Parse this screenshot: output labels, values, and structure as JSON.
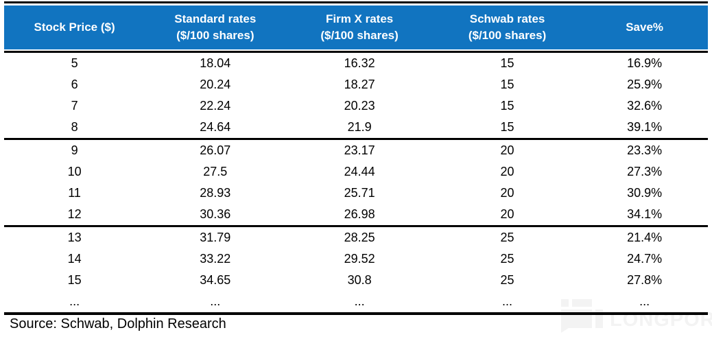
{
  "chart_data": {
    "type": "table",
    "title": "",
    "columns": [
      "Stock Price ($)",
      "Standard rates ($/100 shares)",
      "Firm X rates ($/100 shares)",
      "Schwab rates ($/100 shares)",
      "Save%"
    ],
    "rows": [
      [
        "5",
        "18.04",
        "16.32",
        "15",
        "16.9%"
      ],
      [
        "6",
        "20.24",
        "18.27",
        "15",
        "25.9%"
      ],
      [
        "7",
        "22.24",
        "20.23",
        "15",
        "32.6%"
      ],
      [
        "8",
        "24.64",
        "21.9",
        "15",
        "39.1%"
      ],
      [
        "9",
        "26.07",
        "23.17",
        "20",
        "23.3%"
      ],
      [
        "10",
        "27.5",
        "24.44",
        "20",
        "27.3%"
      ],
      [
        "11",
        "28.93",
        "25.71",
        "20",
        "30.9%"
      ],
      [
        "12",
        "30.36",
        "26.98",
        "20",
        "34.1%"
      ],
      [
        "13",
        "31.79",
        "28.25",
        "25",
        "21.4%"
      ],
      [
        "14",
        "33.22",
        "29.52",
        "25",
        "24.7%"
      ],
      [
        "15",
        "34.65",
        "30.8",
        "25",
        "27.8%"
      ],
      [
        "...",
        "...",
        "...",
        "...",
        "..."
      ]
    ],
    "group_divider_before_row_indices": [
      4,
      8
    ],
    "source": "Source: Schwab, Dolphin Research"
  },
  "table": {
    "headers": [
      {
        "line1": "Stock Price ($)",
        "line2": ""
      },
      {
        "line1": "Standard rates",
        "line2": "($/100 shares)"
      },
      {
        "line1": "Firm X rates",
        "line2": "($/100 shares)"
      },
      {
        "line1": "Schwab rates",
        "line2": "($/100 shares)"
      },
      {
        "line1": "Save%",
        "line2": ""
      }
    ]
  },
  "source_note": "Source: Schwab, Dolphin Research",
  "watermark": {
    "text": "LONGPORT",
    "tm": "™"
  },
  "colors": {
    "header_bg": "#1174C0",
    "header_text": "#FFFFFF",
    "rule": "#000000",
    "watermark": "#F3F3F3"
  }
}
